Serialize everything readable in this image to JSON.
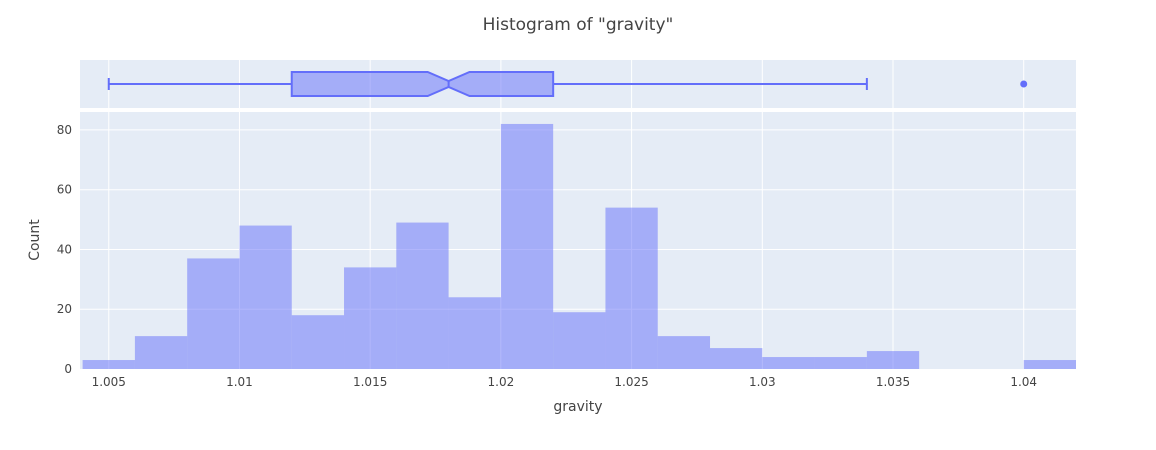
{
  "chart_data": {
    "type": "bar",
    "title": "Histogram of \"gravity\"",
    "xlabel": "gravity",
    "ylabel": "Count",
    "xlim": [
      1.0039,
      1.042
    ],
    "ylim": [
      0,
      86
    ],
    "grid": true,
    "x_ticks": [
      "1.005",
      "1.01",
      "1.015",
      "1.02",
      "1.025",
      "1.03",
      "1.035",
      "1.04"
    ],
    "x_tick_values": [
      1.005,
      1.01,
      1.015,
      1.02,
      1.025,
      1.03,
      1.035,
      1.04
    ],
    "y_ticks": [
      "0",
      "20",
      "40",
      "60",
      "80"
    ],
    "y_tick_values": [
      0,
      20,
      40,
      60,
      80
    ],
    "bin_width": 0.002,
    "bins": [
      {
        "start": 1.004,
        "count": 3
      },
      {
        "start": 1.006,
        "count": 11
      },
      {
        "start": 1.008,
        "count": 37
      },
      {
        "start": 1.01,
        "count": 48
      },
      {
        "start": 1.012,
        "count": 18
      },
      {
        "start": 1.014,
        "count": 34
      },
      {
        "start": 1.016,
        "count": 49
      },
      {
        "start": 1.018,
        "count": 24
      },
      {
        "start": 1.02,
        "count": 82
      },
      {
        "start": 1.022,
        "count": 19
      },
      {
        "start": 1.024,
        "count": 54
      },
      {
        "start": 1.026,
        "count": 11
      },
      {
        "start": 1.028,
        "count": 7
      },
      {
        "start": 1.03,
        "count": 4
      },
      {
        "start": 1.032,
        "count": 4
      },
      {
        "start": 1.034,
        "count": 6
      },
      {
        "start": 1.036,
        "count": 0
      },
      {
        "start": 1.038,
        "count": 0
      },
      {
        "start": 1.04,
        "count": 3
      }
    ],
    "boxplot": {
      "lower_fence": 1.005,
      "q1": 1.012,
      "notch_low": 1.0172,
      "median": 1.018,
      "notch_high": 1.0188,
      "q3": 1.022,
      "upper_fence": 1.034,
      "outliers": [
        1.04
      ]
    },
    "colors": {
      "bar_fill": "#636efa",
      "box_line": "#636efa",
      "plot_bg": "#e5ecf6",
      "grid": "#ffffff",
      "text": "#444444"
    }
  }
}
